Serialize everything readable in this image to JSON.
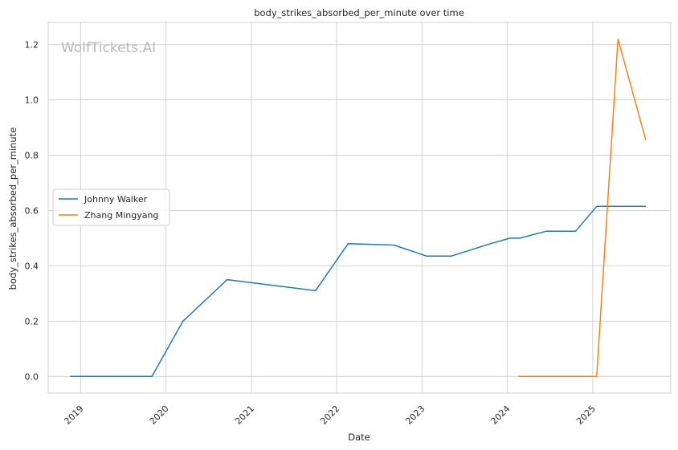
{
  "chart_data": {
    "type": "line",
    "title": "body_strikes_absorbed_per_minute over time",
    "xlabel": "Date",
    "ylabel": "body_strikes_absorbed_per_minute",
    "watermark": "WolfTickets.AI",
    "x_ticks": [
      "2019",
      "2020",
      "2021",
      "2022",
      "2023",
      "2024",
      "2025"
    ],
    "y_ticks": [
      "0.0",
      "0.2",
      "0.4",
      "0.6",
      "0.8",
      "1.0",
      "1.2"
    ],
    "xlim": [
      "2018-08-15",
      "2025-12-01"
    ],
    "ylim": [
      -0.06,
      1.28
    ],
    "grid": true,
    "legend_position": "center-left",
    "series": [
      {
        "name": "Johnny Walker",
        "color": "#1f77b4",
        "points": [
          [
            "2018-11-17",
            0.0
          ],
          [
            "2019-11-02",
            0.0
          ],
          [
            "2020-03-14",
            0.2
          ],
          [
            "2020-09-19",
            0.35
          ],
          [
            "2021-10-02",
            0.31
          ],
          [
            "2022-02-19",
            0.48
          ],
          [
            "2022-09-03",
            0.475
          ],
          [
            "2023-01-21",
            0.435
          ],
          [
            "2023-05-06",
            0.435
          ],
          [
            "2023-10-21",
            0.48
          ],
          [
            "2024-01-13",
            0.5
          ],
          [
            "2024-02-24",
            0.5
          ],
          [
            "2024-06-15",
            0.525
          ],
          [
            "2024-10-19",
            0.525
          ],
          [
            "2025-01-18",
            0.615
          ],
          [
            "2025-08-16",
            0.615
          ]
        ]
      },
      {
        "name": "Zhang Mingyang",
        "color": "#ff7f0e",
        "points": [
          [
            "2024-02-17",
            0.0
          ],
          [
            "2025-01-18",
            0.0
          ],
          [
            "2025-04-19",
            1.22
          ],
          [
            "2025-08-16",
            0.855
          ]
        ]
      }
    ]
  }
}
